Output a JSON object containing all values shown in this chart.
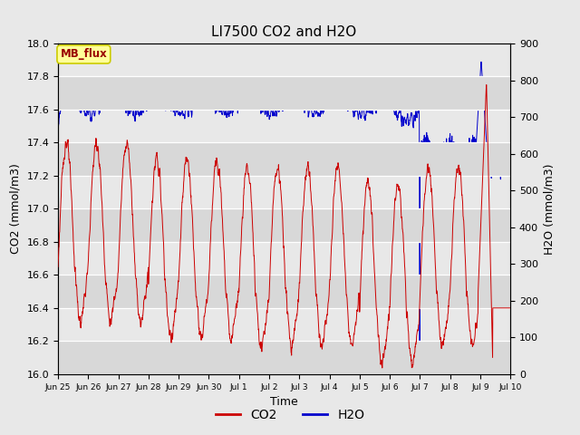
{
  "title": "LI7500 CO2 and H2O",
  "xlabel": "Time",
  "ylabel_left": "CO2 (mmol/m3)",
  "ylabel_right": "H2O (mmol/m3)",
  "co2_ylim": [
    16.0,
    18.0
  ],
  "h2o_ylim": [
    0,
    900
  ],
  "co2_color": "#cc0000",
  "h2o_color": "#0000cc",
  "outer_bg_color": "#e8e8e8",
  "inner_bg_light": "#ebebeb",
  "inner_bg_dark": "#d8d8d8",
  "legend_label_co2": "CO2",
  "legend_label_h2o": "H2O",
  "annotation_text": "MB_flux",
  "annotation_bg": "#ffff99",
  "annotation_border": "#cccc00",
  "annotation_color": "#990000",
  "title_fontsize": 11,
  "axis_fontsize": 9,
  "tick_fontsize": 8,
  "legend_fontsize": 10,
  "co2_yticks": [
    16.0,
    16.2,
    16.4,
    16.6,
    16.8,
    17.0,
    17.2,
    17.4,
    17.6,
    17.8,
    18.0
  ],
  "h2o_yticks": [
    0,
    100,
    200,
    300,
    400,
    500,
    600,
    700,
    800,
    900
  ],
  "tick_labels": [
    "Jun 25",
    "Jun 26",
    "Jun 27",
    "Jun 28",
    "Jun 29",
    "Jun 30",
    "Jul 1",
    "Jul 2",
    "Jul 3",
    "Jul 4",
    "Jul 5",
    "Jul 6",
    "Jul 7",
    "Jul 8",
    "Jul 9",
    "Jul 10"
  ]
}
